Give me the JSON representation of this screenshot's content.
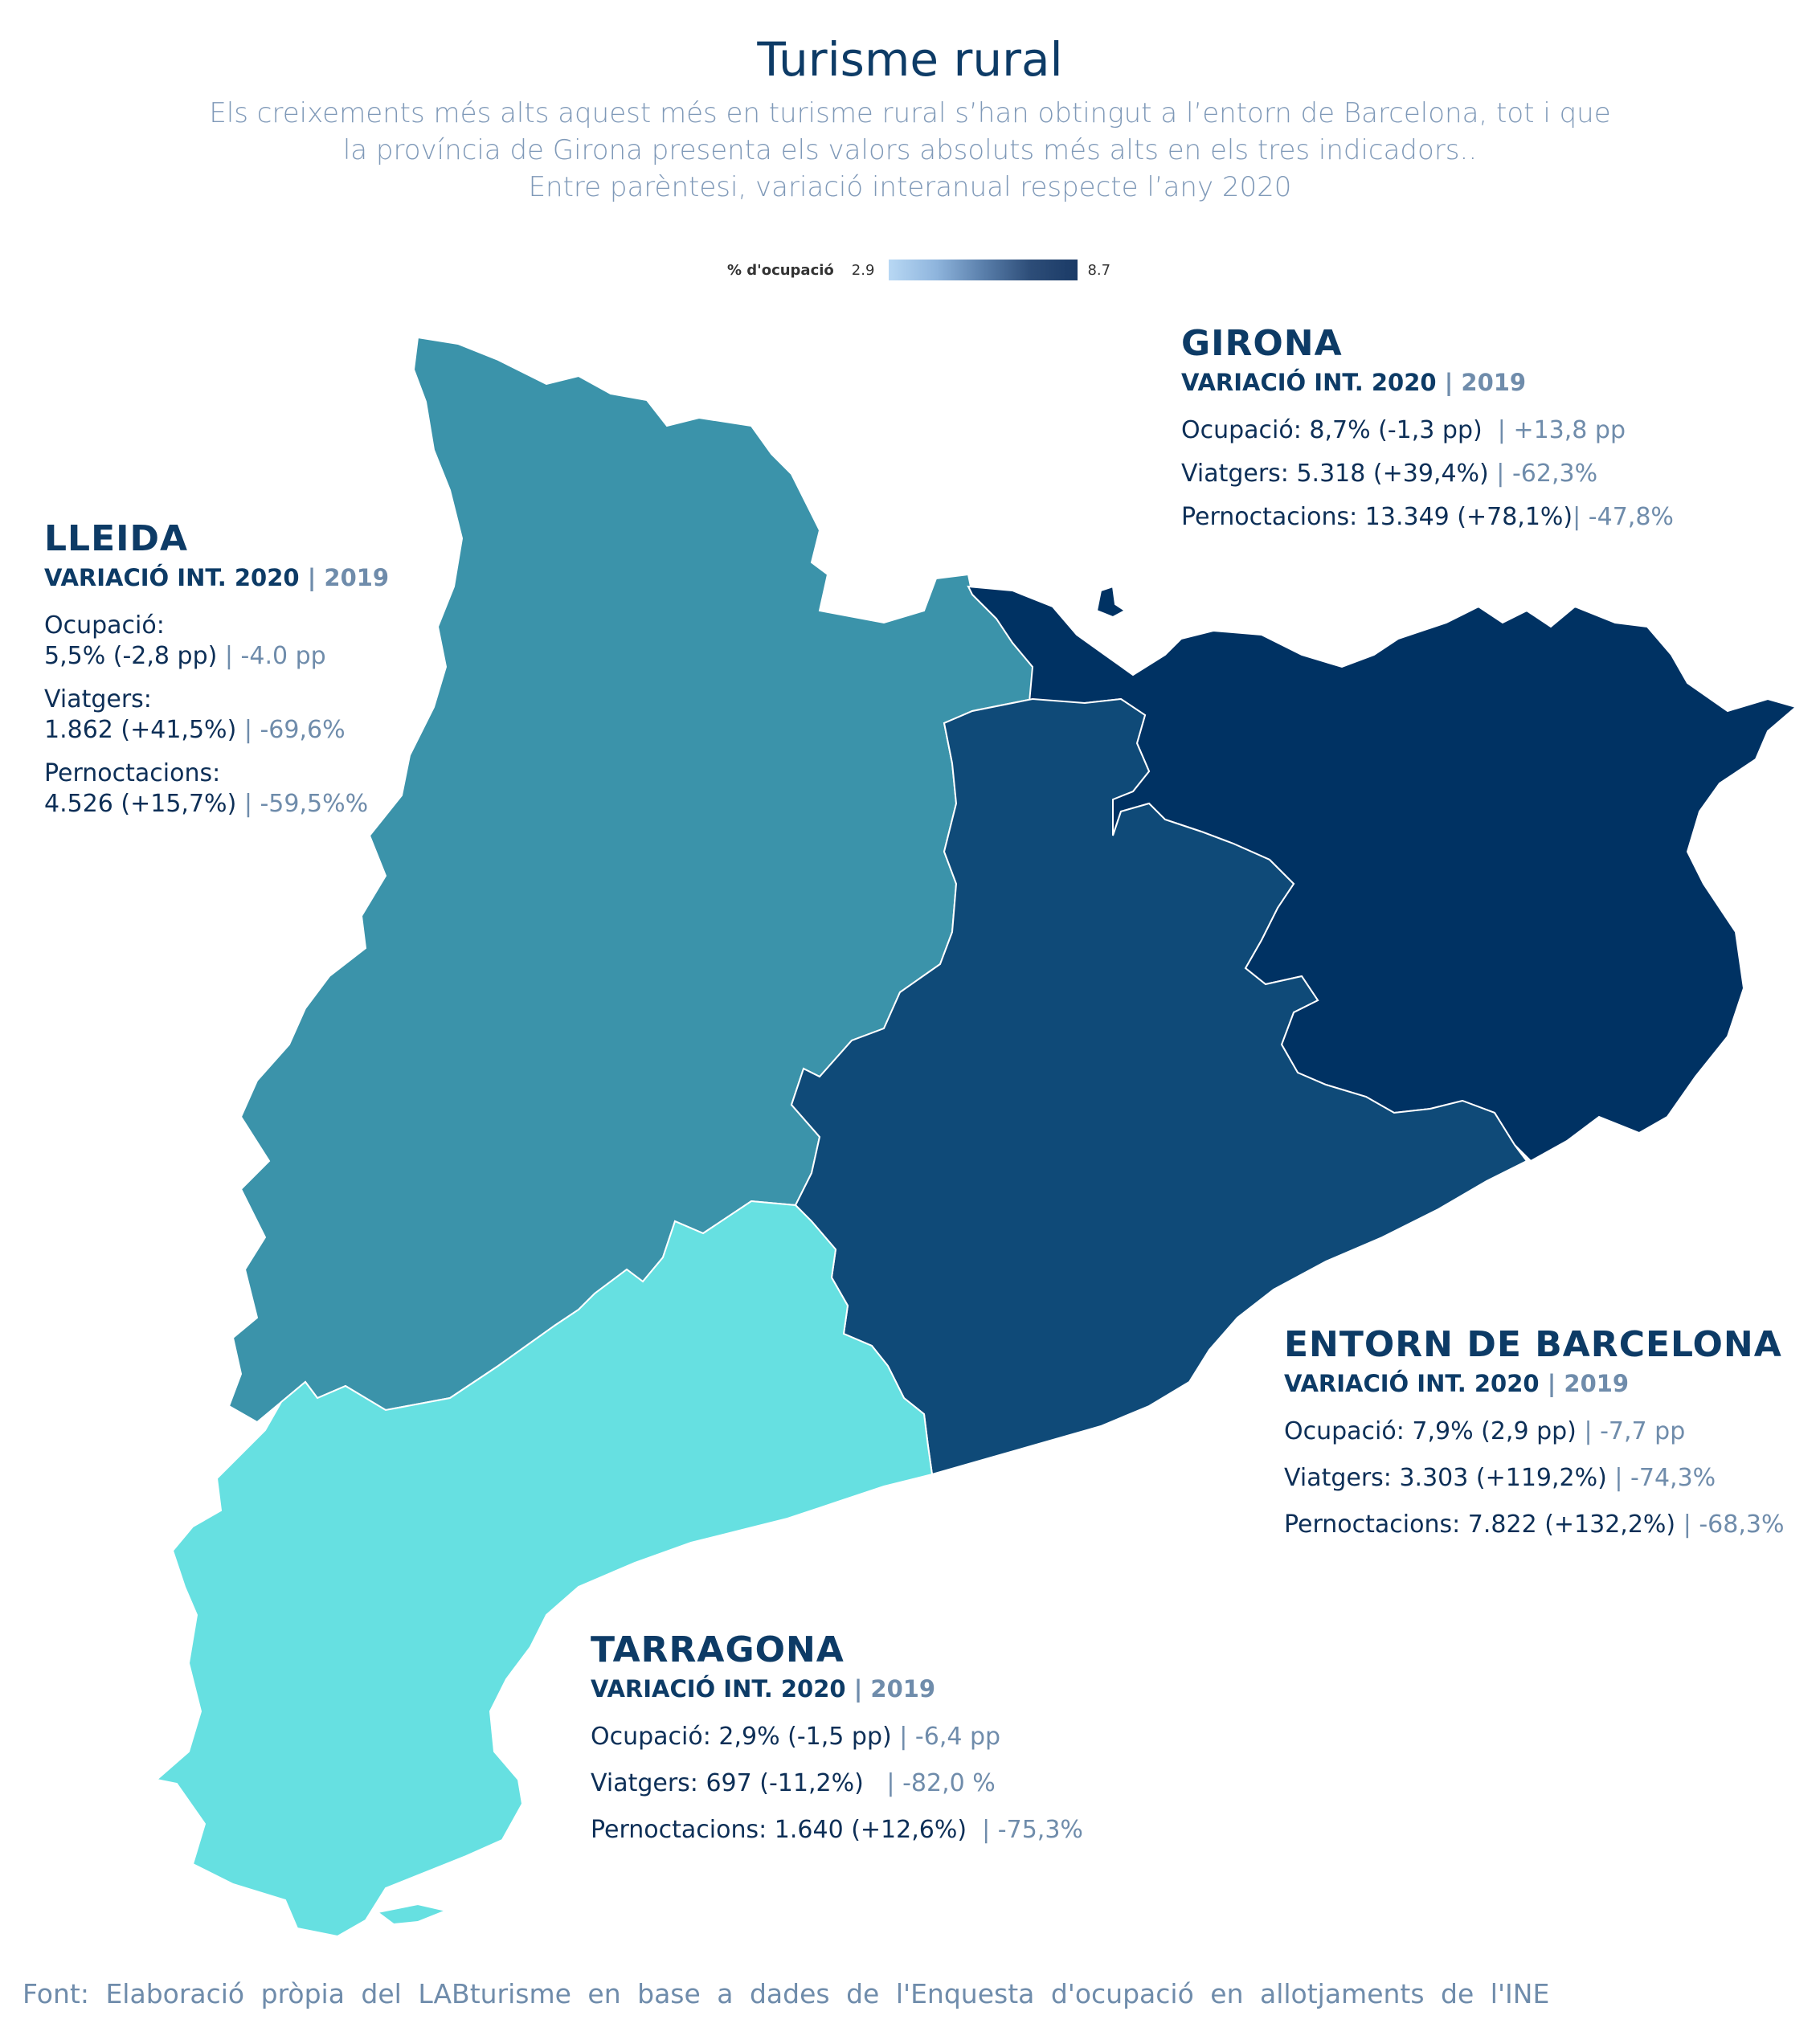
{
  "title": "Turisme rural",
  "subtitle_lines": [
    "Els creixements més alts aquest més en turisme rural s’han obtingut a l’entorn de Barcelona, tot i que",
    "la província de Girona presenta els valors absoluts més alts en els tres indicadors..",
    "Entre parèntesi, variació interanual respecte l’any 2020"
  ],
  "legend": {
    "label": "% d'ocupació",
    "min": "2.9",
    "max": "8.7"
  },
  "colors": {
    "lleida": "#3b93aa",
    "girona": "#003263",
    "barcelona": "#0f4a78",
    "tarragona": "#66e0e1",
    "legend_low": "#b8d8f4",
    "legend_high": "#1a3a66"
  },
  "regions": {
    "girona": {
      "name": "GIRONA",
      "variation_label": "VARIACIÓ INT. 2020",
      "year_label": "2019",
      "occupancy_label": "Ocupació:",
      "occupancy_value": "8,7% (-1,3 pp)",
      "occupancy_2019": "+13,8 pp",
      "travelers_label": "Viatgers:",
      "travelers_value": "5.318 (+39,4%)",
      "travelers_2019": "-62,3%",
      "nights_label": "Pernoctacions:",
      "nights_value": "13.349 (+78,1%)",
      "nights_2019": "-47,8%",
      "occupancy_pct": 8.7
    },
    "lleida": {
      "name": "LLEIDA",
      "variation_label": "VARIACIÓ INT. 2020",
      "year_label": "2019",
      "occupancy_label": "Ocupació:",
      "occupancy_value": "5,5% (-2,8 pp)",
      "occupancy_2019": "-4.0 pp",
      "travelers_label": "Viatgers:",
      "travelers_value": "1.862 (+41,5%)",
      "travelers_2019": "-69,6%",
      "nights_label": "Pernoctacions:",
      "nights_value": "4.526 (+15,7%)",
      "nights_2019": "-59,5%%",
      "occupancy_pct": 5.5
    },
    "barcelona": {
      "name": "ENTORN DE BARCELONA",
      "variation_label": "VARIACIÓ INT. 2020",
      "year_label": "2019",
      "occupancy_label": "Ocupació:",
      "occupancy_value": "7,9% (2,9 pp)",
      "occupancy_2019": "-7,7 pp",
      "travelers_label": "Viatgers:",
      "travelers_value": "3.303 (+119,2%)",
      "travelers_2019": "-74,3%",
      "nights_label": "Pernoctacions:",
      "nights_value": "7.822 (+132,2%)",
      "nights_2019": "-68,3%",
      "occupancy_pct": 7.9
    },
    "tarragona": {
      "name": "TARRAGONA",
      "variation_label": "VARIACIÓ INT. 2020",
      "year_label": "2019",
      "occupancy_label": "Ocupació:",
      "occupancy_value": "2,9% (-1,5 pp)",
      "occupancy_2019": "-6,4 pp",
      "travelers_label": "Viatgers:",
      "travelers_value": "697 (-11,2%)",
      "travelers_2019": "-82,0 %",
      "nights_label": "Pernoctacions:",
      "nights_value": "1.640 (+12,6%)",
      "nights_2019": "-75,3%",
      "occupancy_pct": 2.9
    }
  },
  "source": "Font: Elaboració pròpia del LABturisme en base a dades de l'Enquesta d'ocupació en allotjaments de l'INE"
}
